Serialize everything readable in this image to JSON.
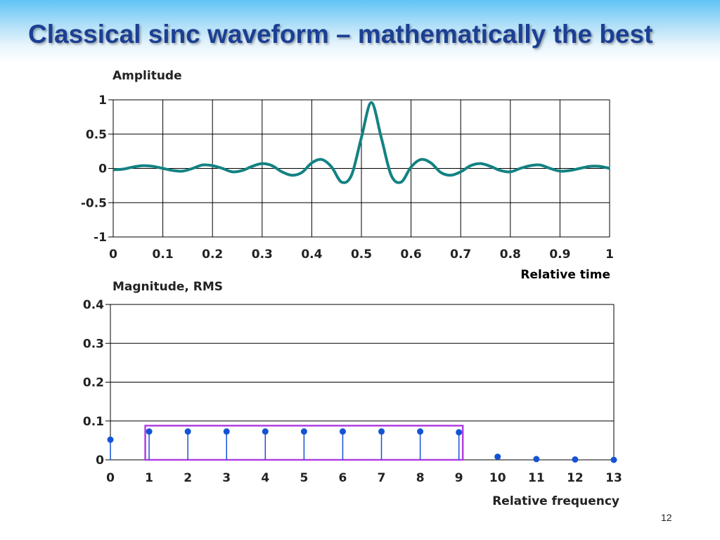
{
  "slide": {
    "title": "Classical sinc waveform – mathematically the best",
    "page_number": "12"
  },
  "colors": {
    "title": "#1c3f94",
    "waveform": "#138282",
    "stem": "#1553d6",
    "highlight_box": "#b13fe0",
    "grid": "#000000"
  },
  "chart_data": [
    {
      "type": "line",
      "ylabel": "Amplitude",
      "xlabel": "Relative time",
      "xlim": [
        0,
        1
      ],
      "ylim": [
        -1,
        1
      ],
      "x_ticks": [
        "0",
        "0.1",
        "0.2",
        "0.3",
        "0.4",
        "0.5",
        "0.6",
        "0.7",
        "0.8",
        "0.9",
        "1"
      ],
      "y_ticks": [
        "1",
        "0.5",
        "0",
        "-0.5",
        "-1"
      ],
      "grid": true,
      "series": [
        {
          "x": [
            0,
            0.02,
            0.04,
            0.06,
            0.08,
            0.1,
            0.12,
            0.14,
            0.16,
            0.18,
            0.2,
            0.22,
            0.24,
            0.26,
            0.28,
            0.3,
            0.32,
            0.34,
            0.36,
            0.38,
            0.4,
            0.42,
            0.44,
            0.46,
            0.48,
            0.5,
            0.52,
            0.54,
            0.56,
            0.58,
            0.6,
            0.62,
            0.64,
            0.66,
            0.68,
            0.7,
            0.72,
            0.74,
            0.76,
            0.78,
            0.8,
            0.82,
            0.84,
            0.86,
            0.88,
            0.9,
            0.92,
            0.94,
            0.96,
            0.98,
            1
          ],
          "values": [
            -0.02,
            -0.01,
            0.02,
            0.04,
            0.03,
            0.0,
            -0.03,
            -0.04,
            0.0,
            0.05,
            0.04,
            0.0,
            -0.05,
            -0.03,
            0.03,
            0.07,
            0.04,
            -0.05,
            -0.1,
            -0.06,
            0.08,
            0.13,
            0.02,
            -0.2,
            -0.1,
            0.45,
            0.96,
            0.45,
            -0.1,
            -0.2,
            0.02,
            0.13,
            0.08,
            -0.06,
            -0.1,
            -0.05,
            0.04,
            0.07,
            0.03,
            -0.03,
            -0.05,
            0.0,
            0.04,
            0.05,
            0.0,
            -0.04,
            -0.03,
            0.0,
            0.03,
            0.03,
            0.0
          ]
        }
      ]
    },
    {
      "type": "stem",
      "ylabel": "Magnitude, RMS",
      "xlabel": "Relative frequency",
      "xlim": [
        0,
        13
      ],
      "ylim": [
        0,
        0.4
      ],
      "x_ticks": [
        "0",
        "1",
        "2",
        "3",
        "4",
        "5",
        "6",
        "7",
        "8",
        "9",
        "10",
        "11",
        "12",
        "13"
      ],
      "y_ticks": [
        "0.4",
        "0.3",
        "0.2",
        "0.1",
        "0"
      ],
      "grid": true,
      "series": [
        {
          "x": [
            0,
            1,
            2,
            3,
            4,
            5,
            6,
            7,
            8,
            9,
            10,
            11,
            12,
            13
          ],
          "values": [
            0.052,
            0.073,
            0.073,
            0.073,
            0.073,
            0.073,
            0.073,
            0.073,
            0.073,
            0.071,
            0.008,
            0.002,
            0.001,
            0.0
          ]
        }
      ],
      "highlight_region": {
        "x_from": 0.9,
        "x_to": 9.1,
        "y_top": 0.088
      }
    }
  ]
}
